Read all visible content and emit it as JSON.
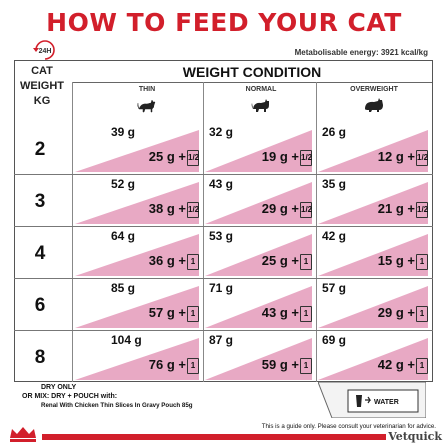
{
  "title": "HOW TO FEED YOUR CAT",
  "badge_label": "24H",
  "energy_note": "Metabolisable energy: 3921 kcal/kg",
  "header": {
    "cat_weight_label": [
      "CAT",
      "WEIGHT",
      "KG"
    ],
    "weight_condition": "WEIGHT CONDITION",
    "columns": [
      "THIN",
      "NORMAL",
      "OVERWEIGHT"
    ]
  },
  "rows": [
    {
      "weight": "2",
      "cells": [
        {
          "dry_only": "39 g",
          "mix_dry": "25 g",
          "pouch": "1/2"
        },
        {
          "dry_only": "32 g",
          "mix_dry": "19 g",
          "pouch": "1/2"
        },
        {
          "dry_only": "26 g",
          "mix_dry": "12 g",
          "pouch": "1/2"
        }
      ]
    },
    {
      "weight": "3",
      "cells": [
        {
          "dry_only": "52 g",
          "mix_dry": "38 g",
          "pouch": "1/2"
        },
        {
          "dry_only": "43 g",
          "mix_dry": "29 g",
          "pouch": "1/2"
        },
        {
          "dry_only": "35 g",
          "mix_dry": "21 g",
          "pouch": "1/2"
        }
      ]
    },
    {
      "weight": "4",
      "cells": [
        {
          "dry_only": "64 g",
          "mix_dry": "36 g",
          "pouch": "1"
        },
        {
          "dry_only": "53 g",
          "mix_dry": "25 g",
          "pouch": "1"
        },
        {
          "dry_only": "42 g",
          "mix_dry": "15 g",
          "pouch": "1"
        }
      ]
    },
    {
      "weight": "6",
      "cells": [
        {
          "dry_only": "85 g",
          "mix_dry": "57 g",
          "pouch": "1"
        },
        {
          "dry_only": "71 g",
          "mix_dry": "43 g",
          "pouch": "1"
        },
        {
          "dry_only": "57 g",
          "mix_dry": "29 g",
          "pouch": "1"
        }
      ]
    },
    {
      "weight": "8",
      "cells": [
        {
          "dry_only": "104 g",
          "mix_dry": "76 g",
          "pouch": "1"
        },
        {
          "dry_only": "87 g",
          "mix_dry": "59 g",
          "pouch": "1"
        },
        {
          "dry_only": "69 g",
          "mix_dry": "42 g",
          "pouch": "1"
        }
      ]
    }
  ],
  "footer": {
    "dry_only": "DRY ONLY",
    "or_mix": "OR  MIX: DRY + POUCH with:",
    "pouch_name": "Renal With Chicken Thin Slices In Gravy Pouch 85g",
    "water": "WATER",
    "disclaimer": "This is a guide only. Please consult your veterinarian for advice.",
    "brand": "Vetquick"
  },
  "colors": {
    "accent_red": "#d21f2b",
    "pink_fill": "#e8a9c4"
  }
}
